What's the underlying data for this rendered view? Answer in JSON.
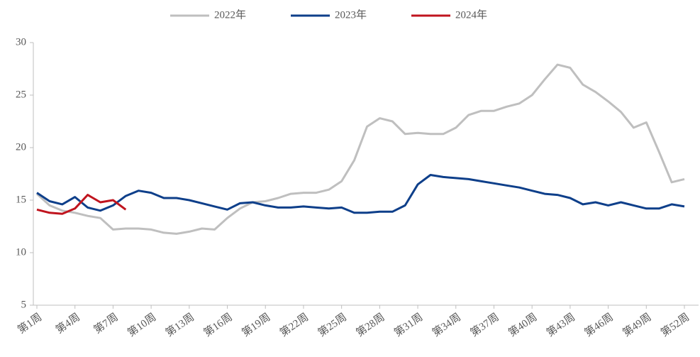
{
  "chart_data": {
    "type": "line",
    "categories": [
      "第1周",
      null,
      null,
      "第4周",
      null,
      null,
      "第7周",
      null,
      null,
      "第10周",
      null,
      null,
      "第13周",
      null,
      null,
      "第16周",
      null,
      null,
      "第19周",
      null,
      null,
      "第22周",
      null,
      null,
      "第25周",
      null,
      null,
      "第28周",
      null,
      null,
      "第31周",
      null,
      null,
      "第34周",
      null,
      null,
      "第37周",
      null,
      null,
      "第40周",
      null,
      null,
      "第43周",
      null,
      null,
      "第46周",
      null,
      null,
      "第49周",
      null,
      null,
      "第52周"
    ],
    "series": [
      {
        "name": "2022年",
        "color": "#bfbfbf",
        "values": [
          15.6,
          14.5,
          14.0,
          13.8,
          13.5,
          13.3,
          12.2,
          12.3,
          12.3,
          12.2,
          11.9,
          11.8,
          12.0,
          12.3,
          12.2,
          13.3,
          14.2,
          14.8,
          14.9,
          15.2,
          15.6,
          15.7,
          15.7,
          16.0,
          16.8,
          18.8,
          22.0,
          22.8,
          22.5,
          21.3,
          21.4,
          21.3,
          21.3,
          21.9,
          23.1,
          23.5,
          23.5,
          23.9,
          24.2,
          25.0,
          26.5,
          27.9,
          27.6,
          26.0,
          25.3,
          24.4,
          23.4,
          21.9,
          22.4,
          19.6,
          16.7,
          17.0
        ]
      },
      {
        "name": "2023年",
        "color": "#0e3f8a",
        "values": [
          15.7,
          14.9,
          14.6,
          15.3,
          14.3,
          14.0,
          14.5,
          15.4,
          15.9,
          15.7,
          15.2,
          15.2,
          15.0,
          14.7,
          14.4,
          14.1,
          14.7,
          14.8,
          14.5,
          14.3,
          14.3,
          14.4,
          14.3,
          14.2,
          14.3,
          13.8,
          13.8,
          13.9,
          13.9,
          14.5,
          16.5,
          17.4,
          17.2,
          17.1,
          17.0,
          16.8,
          16.6,
          16.4,
          16.2,
          15.9,
          15.6,
          15.5,
          15.2,
          14.6,
          14.8,
          14.5,
          14.8,
          14.5,
          14.2,
          14.2,
          14.6,
          14.4
        ]
      },
      {
        "name": "2024年",
        "color": "#c0141e",
        "values": [
          14.1,
          13.8,
          13.7,
          14.2,
          15.5,
          14.8,
          15.0,
          14.1,
          null,
          null,
          null,
          null,
          null,
          null,
          null,
          null,
          null,
          null,
          null,
          null,
          null,
          null,
          null,
          null,
          null,
          null,
          null,
          null,
          null,
          null,
          null,
          null,
          null,
          null,
          null,
          null,
          null,
          null,
          null,
          null,
          null,
          null,
          null,
          null,
          null,
          null,
          null,
          null,
          null,
          null,
          null,
          null
        ]
      }
    ],
    "ylim": [
      5,
      30
    ],
    "yticks": [
      5,
      10,
      15,
      20,
      25,
      30
    ],
    "legend": "top"
  }
}
